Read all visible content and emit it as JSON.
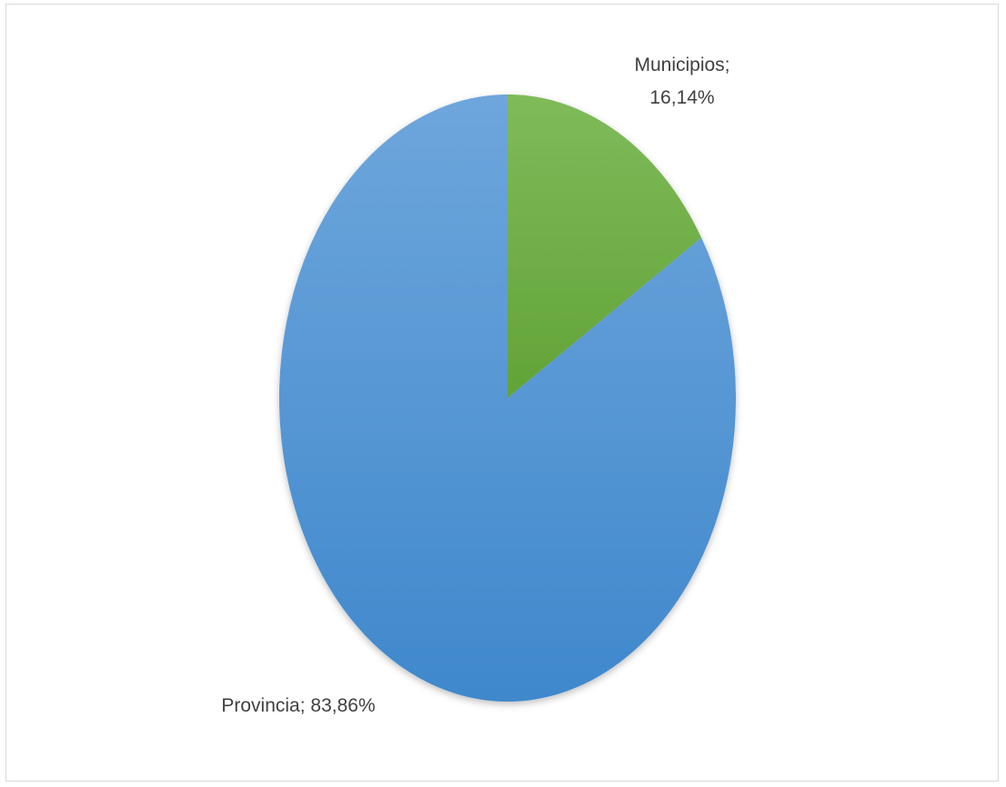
{
  "chart_data": {
    "type": "pie",
    "title": "",
    "series": [
      {
        "name": "",
        "slices": [
          {
            "label": "Municipios",
            "value": 16.14,
            "label_lines": [
              "Municipios;",
              "16,14%"
            ],
            "color": "#70ad47"
          },
          {
            "label": "Provincia",
            "value": 83.86,
            "label_lines": [
              "Provincia; 83,86%"
            ],
            "color": "#5b9bd5"
          }
        ]
      }
    ],
    "legend": "none",
    "data_labels": "category; percentage"
  }
}
